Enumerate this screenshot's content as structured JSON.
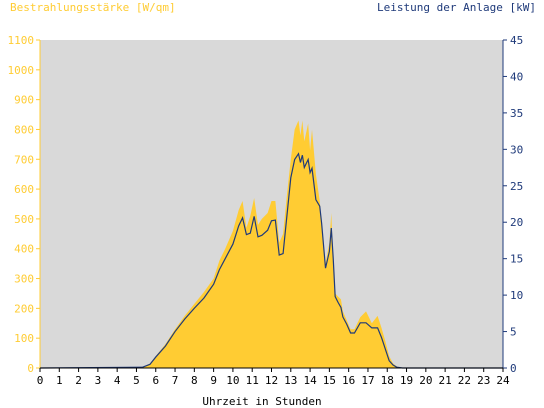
{
  "colors": {
    "irradiance": "#FFCC33",
    "power": "#1F3A7A",
    "plot_background": "#D9D9D9",
    "axis_left": "#FFCC33",
    "axis_right": "#1F3A7A",
    "grid": "#ffffff"
  },
  "chart_data": {
    "type": "area",
    "left_axis_title": "Bestrahlungsstärke [W/qm]",
    "right_axis_title": "Leistung der Anlage [kW]",
    "xlabel": "Uhrzeit in Stunden",
    "xlim": [
      0,
      24
    ],
    "ylim_left": [
      0,
      1100
    ],
    "ylim_right": [
      0,
      45
    ],
    "x_ticks": [
      "0",
      "1",
      "2",
      "3",
      "4",
      "5",
      "6",
      "7",
      "8",
      "9",
      "10",
      "11",
      "12",
      "13",
      "14",
      "15",
      "16",
      "17",
      "18",
      "19",
      "20",
      "21",
      "22",
      "23",
      "24"
    ],
    "y_left_ticks": [
      "0",
      "100",
      "200",
      "300",
      "400",
      "500",
      "600",
      "700",
      "800",
      "900",
      "1000",
      "1100"
    ],
    "y_right_ticks": [
      "0",
      "5",
      "10",
      "15",
      "20",
      "25",
      "30",
      "35",
      "40",
      "45"
    ],
    "grid": false,
    "series": [
      {
        "name": "Bestrahlungsstärke [W/qm]",
        "axis": "left",
        "kind": "area",
        "x": [
          0,
          5.3,
          5.7,
          6.0,
          6.5,
          7.0,
          7.5,
          8.0,
          8.5,
          9.0,
          9.3,
          9.6,
          10.0,
          10.3,
          10.5,
          10.7,
          10.9,
          11.1,
          11.3,
          11.5,
          11.8,
          12.0,
          12.2,
          12.4,
          12.6,
          12.8,
          13.0,
          13.2,
          13.4,
          13.5,
          13.6,
          13.7,
          13.9,
          14.0,
          14.1,
          14.3,
          14.5,
          14.6,
          14.8,
          15.0,
          15.1,
          15.2,
          15.3,
          15.45,
          15.6,
          15.7,
          15.9,
          16.1,
          16.3,
          16.6,
          16.9,
          17.2,
          17.5,
          17.7,
          17.9,
          18.1,
          18.3,
          18.5,
          18.8,
          19.0,
          19.3,
          24
        ],
        "y": [
          0,
          2,
          15,
          40,
          80,
          130,
          175,
          215,
          255,
          300,
          360,
          400,
          460,
          530,
          560,
          470,
          510,
          570,
          480,
          500,
          520,
          560,
          560,
          420,
          450,
          580,
          700,
          800,
          830,
          780,
          830,
          760,
          820,
          730,
          800,
          650,
          560,
          480,
          350,
          420,
          520,
          360,
          250,
          240,
          230,
          190,
          160,
          130,
          130,
          170,
          190,
          150,
          175,
          135,
          90,
          40,
          15,
          5,
          0,
          0,
          0,
          0
        ]
      },
      {
        "name": "Leistung der Anlage [kW]",
        "axis": "right",
        "kind": "line",
        "x": [
          0,
          5.3,
          5.7,
          6.0,
          6.5,
          7.0,
          7.5,
          8.0,
          8.5,
          9.0,
          9.3,
          9.6,
          10.0,
          10.3,
          10.5,
          10.7,
          10.9,
          11.1,
          11.3,
          11.5,
          11.8,
          12.0,
          12.2,
          12.4,
          12.6,
          12.8,
          13.0,
          13.2,
          13.4,
          13.5,
          13.6,
          13.7,
          13.9,
          14.0,
          14.1,
          14.3,
          14.5,
          14.6,
          14.8,
          15.0,
          15.1,
          15.2,
          15.3,
          15.45,
          15.6,
          15.7,
          15.9,
          16.1,
          16.3,
          16.6,
          16.9,
          17.2,
          17.5,
          17.7,
          17.9,
          18.1,
          18.3,
          18.5,
          18.8,
          19.0,
          19.3,
          24
        ],
        "y": [
          0,
          0.1,
          0.5,
          1.5,
          3.0,
          5.0,
          6.7,
          8.2,
          9.6,
          11.5,
          13.5,
          15.0,
          17.0,
          19.5,
          20.6,
          18.3,
          18.5,
          20.8,
          18.0,
          18.2,
          18.9,
          20.2,
          20.3,
          15.5,
          15.7,
          20.9,
          26.1,
          28.6,
          29.4,
          28.2,
          29.2,
          27.5,
          28.6,
          26.8,
          27.4,
          23.1,
          22.2,
          19.8,
          13.7,
          16.0,
          19.2,
          15.0,
          9.8,
          9.0,
          8.3,
          7.0,
          6.0,
          4.8,
          4.8,
          6.2,
          6.2,
          5.5,
          5.5,
          4.2,
          2.6,
          1.0,
          0.4,
          0.1,
          0,
          0,
          0,
          0
        ]
      }
    ]
  }
}
